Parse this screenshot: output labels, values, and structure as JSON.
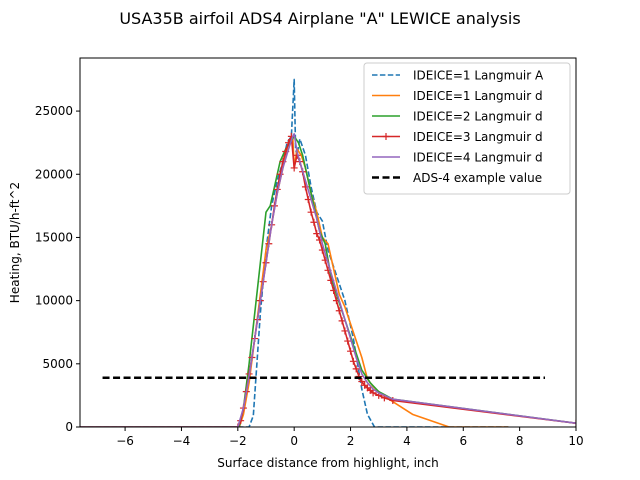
{
  "chart_data": {
    "type": "line",
    "title": "USA35B airfoil ADS4 Airplane \"A\" LEWICE analysis",
    "xlabel": "Surface distance from highlight, inch",
    "ylabel": "Heating, BTU/h-ft^2",
    "xlim": [
      -7.6,
      10
    ],
    "ylim": [
      0,
      29200
    ],
    "xticks": [
      -6,
      -4,
      -2,
      0,
      2,
      4,
      6,
      8,
      10
    ],
    "yticks": [
      0,
      5000,
      10000,
      15000,
      20000,
      25000
    ],
    "xtick_labels": [
      "−6",
      "−4",
      "−2",
      "0",
      "2",
      "4",
      "6",
      "8",
      "10"
    ],
    "ytick_labels": [
      "0",
      "5000",
      "10000",
      "15000",
      "20000",
      "25000"
    ],
    "grid": false,
    "legend_position": "top-right",
    "series": [
      {
        "name": "IDEICE=1 Langmuir A",
        "color": "#1f77b4",
        "style": "dashed",
        "x": [
          -7.6,
          -1.6,
          -1.45,
          -1.2,
          -1.0,
          -0.8,
          -0.6,
          -0.4,
          -0.25,
          -0.1,
          0.0,
          0.05,
          0.1,
          0.2,
          0.4,
          0.6,
          0.8,
          1.0,
          1.2,
          1.5,
          1.8,
          2.1,
          2.4,
          2.6,
          2.85,
          3.2,
          7.6
        ],
        "y": [
          0,
          0,
          900,
          9000,
          14000,
          17500,
          19500,
          21000,
          22500,
          23000,
          27500,
          22000,
          21500,
          22800,
          21500,
          19000,
          17000,
          16300,
          14000,
          12000,
          10000,
          7000,
          3000,
          1000,
          0,
          0,
          0
        ]
      },
      {
        "name": "IDEICE=1 Langmuir d",
        "color": "#ff7f0e",
        "style": "solid",
        "x": [
          -7.6,
          -1.95,
          -1.8,
          -1.6,
          -1.4,
          -1.2,
          -1.0,
          -0.8,
          -0.6,
          -0.4,
          -0.2,
          -0.05,
          0.0,
          0.1,
          0.25,
          0.4,
          0.6,
          0.8,
          1.0,
          1.2,
          1.4,
          1.6,
          1.8,
          2.1,
          2.4,
          2.6,
          2.8,
          3.1,
          3.5,
          4.2,
          5.5,
          7.6
        ],
        "y": [
          0,
          0,
          1000,
          3500,
          7000,
          10500,
          14000,
          16000,
          18500,
          20500,
          22500,
          23000,
          20500,
          22000,
          21500,
          20500,
          18500,
          17000,
          15000,
          14500,
          12500,
          10500,
          9500,
          7500,
          5500,
          3800,
          3200,
          2600,
          2000,
          1000,
          0,
          0
        ]
      },
      {
        "name": "IDEICE=2 Langmuir d",
        "color": "#2ca02c",
        "style": "solid",
        "x": [
          -7.6,
          -1.95,
          -1.8,
          -1.6,
          -1.4,
          -1.2,
          -1.0,
          -0.85,
          -0.7,
          -0.5,
          -0.3,
          -0.15,
          0.0,
          0.15,
          0.3,
          0.5,
          0.7,
          0.9,
          1.1,
          1.3,
          1.5,
          1.8,
          2.1,
          2.4,
          2.7,
          3.0,
          3.5,
          10
        ],
        "y": [
          0,
          0,
          1500,
          5000,
          9000,
          13000,
          17000,
          17500,
          19000,
          21000,
          22000,
          22500,
          23000,
          22500,
          21500,
          19500,
          17500,
          15500,
          14500,
          12000,
          10500,
          8500,
          6500,
          4500,
          3500,
          2800,
          2200,
          300
        ]
      },
      {
        "name": "IDEICE=3 Langmuir d",
        "color": "#d62728",
        "style": "solid-plus",
        "x": [
          -7.6,
          -2.0,
          -1.9,
          -1.8,
          -1.7,
          -1.6,
          -1.5,
          -1.4,
          -1.3,
          -1.2,
          -1.1,
          -1.0,
          -0.9,
          -0.8,
          -0.7,
          -0.6,
          -0.5,
          -0.4,
          -0.3,
          -0.2,
          -0.1,
          0.0,
          0.1,
          0.2,
          0.3,
          0.4,
          0.5,
          0.6,
          0.7,
          0.8,
          0.9,
          1.0,
          1.1,
          1.2,
          1.3,
          1.4,
          1.5,
          1.6,
          1.7,
          1.8,
          1.9,
          2.0,
          2.1,
          2.2,
          2.3,
          2.4,
          2.5,
          2.6,
          2.7,
          2.8,
          3.0,
          3.2,
          3.5,
          10
        ],
        "y": [
          0,
          0,
          500,
          1500,
          2800,
          4200,
          5500,
          7000,
          8500,
          10000,
          11500,
          13000,
          14500,
          16000,
          17500,
          18800,
          20000,
          21000,
          21800,
          22500,
          23000,
          20500,
          21500,
          21000,
          20200,
          19000,
          18000,
          17000,
          16200,
          15300,
          14800,
          14000,
          13200,
          12400,
          11600,
          10800,
          10000,
          9200,
          8400,
          7600,
          6800,
          6000,
          5200,
          4600,
          4000,
          3600,
          3300,
          3100,
          2900,
          2700,
          2500,
          2300,
          2100,
          300
        ]
      },
      {
        "name": "IDEICE=4 Langmuir d",
        "color": "#9467bd",
        "style": "solid",
        "x": [
          -7.6,
          -2.0,
          -1.8,
          -1.6,
          -1.4,
          -1.2,
          -1.0,
          -0.8,
          -0.6,
          -0.4,
          -0.2,
          -0.05,
          0.0,
          0.1,
          0.2,
          0.4,
          0.6,
          0.8,
          1.0,
          1.2,
          1.4,
          1.6,
          1.8,
          2.0,
          2.2,
          2.4,
          2.6,
          2.8,
          3.0,
          3.5,
          10
        ],
        "y": [
          0,
          0,
          1500,
          4000,
          7000,
          10000,
          13000,
          16000,
          18500,
          20500,
          22000,
          23000,
          23200,
          21800,
          21000,
          19500,
          18000,
          16500,
          14500,
          13000,
          11500,
          10000,
          8500,
          7000,
          5500,
          4200,
          3500,
          3000,
          2700,
          2200,
          300
        ]
      },
      {
        "name": "ADS-4 example value",
        "color": "#000000",
        "style": "thick-dashed",
        "x": [
          -6.8,
          8.9
        ],
        "y": [
          3900,
          3900
        ]
      }
    ]
  }
}
